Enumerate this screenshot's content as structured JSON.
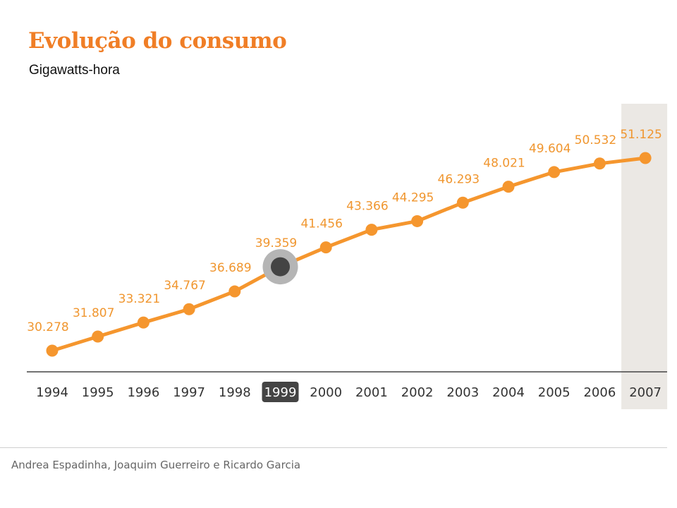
{
  "header": {
    "title": "Evolução do consumo",
    "subtitle": "Gigawatts-hora"
  },
  "chart_data": {
    "type": "line",
    "title": "Evolução do consumo",
    "ylabel": "Gigawatts-hora",
    "xlabel": "",
    "categories": [
      "1994",
      "1995",
      "1996",
      "1997",
      "1998",
      "1999",
      "2000",
      "2001",
      "2002",
      "2003",
      "2004",
      "2005",
      "2006",
      "2007"
    ],
    "values": [
      30278,
      31807,
      33321,
      34767,
      36689,
      39359,
      41456,
      43366,
      44295,
      46293,
      48021,
      49604,
      50532,
      51125
    ],
    "labels": [
      "30.278",
      "31.807",
      "33.321",
      "34.767",
      "36.689",
      "39.359",
      "41.456",
      "43.366",
      "44.295",
      "46.293",
      "48.021",
      "49.604",
      "50.532",
      "51.125"
    ],
    "ylim": [
      28000,
      53000
    ],
    "grid": false,
    "highlighted_category": "1999",
    "shaded_category": "2007",
    "colors": {
      "line": "#f5962e",
      "label": "#f0962f",
      "highlight": "#444444",
      "highlight_ring": "#b5b5b5",
      "shade": "#ebe8e4",
      "axis": "#444444",
      "tick_text": "#333333"
    }
  },
  "footer": {
    "credit": "Andrea Espadinha, Joaquim Guerreiro e Ricardo Garcia"
  }
}
